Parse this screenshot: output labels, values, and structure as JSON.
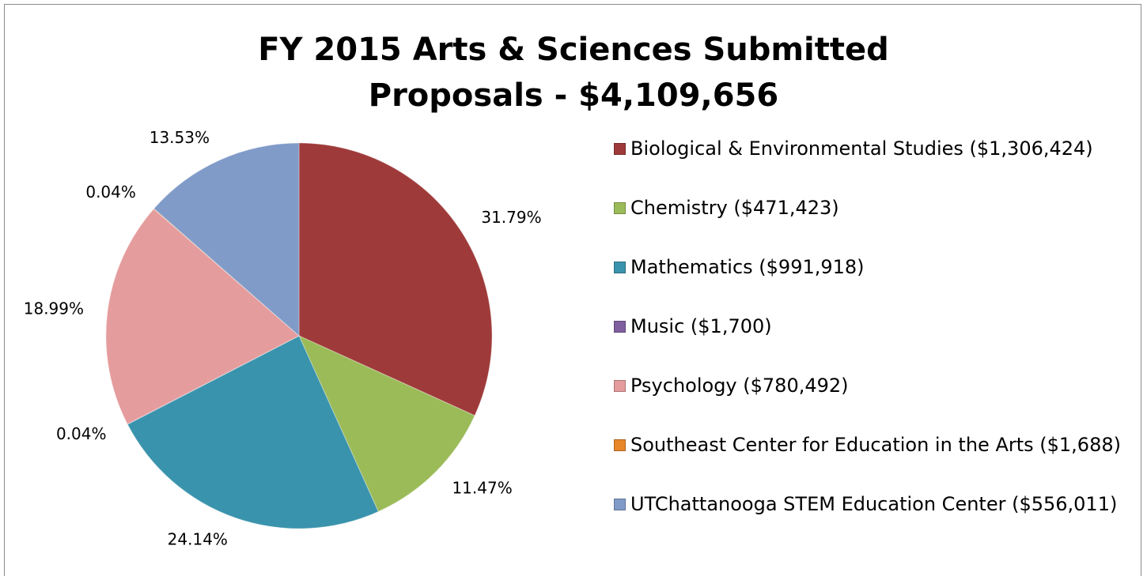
{
  "chart_data": {
    "type": "pie",
    "title": "FY 2015 Arts & Sciences Submitted Proposals - $4,109,656",
    "categories": [
      "Biological & Environmental Studies ($1,306,424)",
      "Chemistry ($471,423)",
      "Mathematics ($991,918)",
      "Music ($1,700)",
      "Psychology ($780,492)",
      "Southeast Center for Education in the Arts ($1,688)",
      "UTChattanooga STEM Education Center ($556,011)"
    ],
    "values": [
      31.79,
      11.47,
      24.14,
      0.04,
      18.99,
      0.04,
      13.53
    ],
    "value_labels": [
      "31.79%",
      "11.47%",
      "24.14%",
      "0.04%",
      "18.99%",
      "0.04%",
      "13.53%"
    ],
    "colors": [
      "#9e3b3a",
      "#9bbb59",
      "#3a93ac",
      "#7f5fa0",
      "#e59c9c",
      "#e8862a",
      "#809bc8"
    ],
    "legend": "right"
  }
}
